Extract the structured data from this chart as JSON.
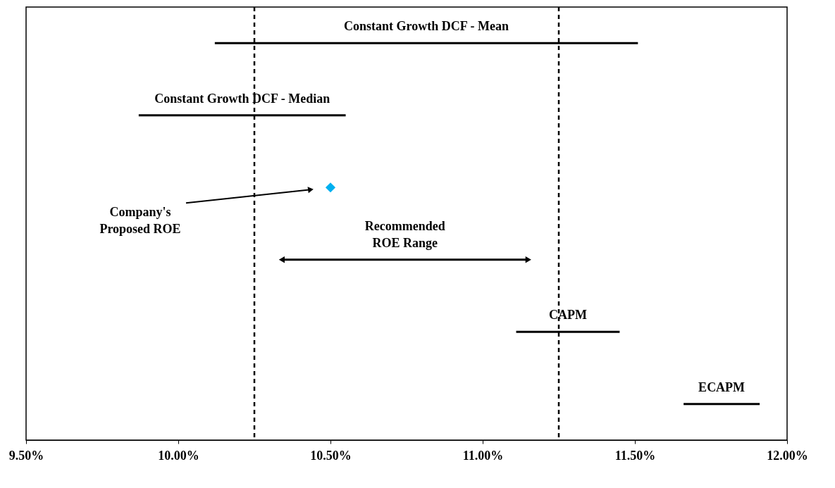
{
  "chart_data": {
    "type": "bar",
    "orientation": "horizontal",
    "tick_labels": "x",
    "grid": false,
    "categories": [
      "Constant Growth DCF - Mean",
      "Constant Growth DCF - Median",
      null,
      "Recommended\nROE Range",
      "CAPM",
      "ECAPM"
    ],
    "series": [
      {
        "color": "#000000",
        "base": [
          10.12,
          9.87,
          null,
          null,
          11.11,
          11.66
        ],
        "values": [
          1.39,
          0.68,
          null,
          null,
          0.34,
          0.25
        ]
      },
      {
        "type": "scatter",
        "color": "#00b0f0",
        "marker": "diamond",
        "values": [
          null,
          null,
          10.5,
          null,
          null,
          null
        ]
      },
      {
        "color": "#000000",
        "marker": "triangle",
        "base": [
          null,
          null,
          null,
          10.34,
          null,
          null
        ],
        "values": [
          null,
          null,
          null,
          0.81,
          null,
          null
        ]
      }
    ],
    "xlim": [
      9.5,
      12.0
    ],
    "xticks": [
      {
        "value": 9.5,
        "label": "9.50%"
      },
      {
        "value": 10.0,
        "label": "10.00%"
      },
      {
        "value": 10.5,
        "label": "10.50%"
      },
      {
        "value": 11.0,
        "label": "11.00%"
      },
      {
        "value": 11.5,
        "label": "11.50%"
      },
      {
        "value": 12.0,
        "label": "12.00%"
      }
    ],
    "ref_lines": [
      {
        "axis": "x",
        "value": 10.25,
        "line_style": "dashed"
      },
      {
        "axis": "x",
        "value": 11.25,
        "line_style": "dashed"
      }
    ],
    "annotations": [
      "Company's\nProposed ROE"
    ]
  }
}
